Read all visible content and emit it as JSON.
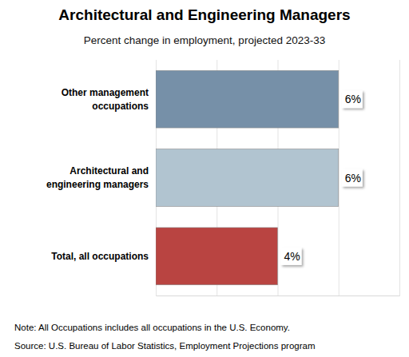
{
  "chart_data": {
    "type": "bar",
    "orientation": "horizontal",
    "title": "Architectural and Engineering Managers",
    "subtitle": "Percent change in employment, projected 2023-33",
    "categories": [
      "Other management occupations",
      "Architectural and engineering managers",
      "Total, all occupations"
    ],
    "values": [
      6,
      6,
      4
    ],
    "value_labels": [
      "6%",
      "6%",
      "4%"
    ],
    "colors": [
      "#7690a8",
      "#b1c4d0",
      "#b94441"
    ],
    "xlim": [
      0,
      8
    ],
    "xticks": [
      0,
      2,
      4,
      6,
      8
    ],
    "grid": true,
    "tick_labels": false,
    "data_labels": true,
    "note": "Note: All Occupations includes all occupations in the U.S. Economy.",
    "source": "Source: U.S. Bureau of Labor Statistics, Employment Projections program"
  }
}
